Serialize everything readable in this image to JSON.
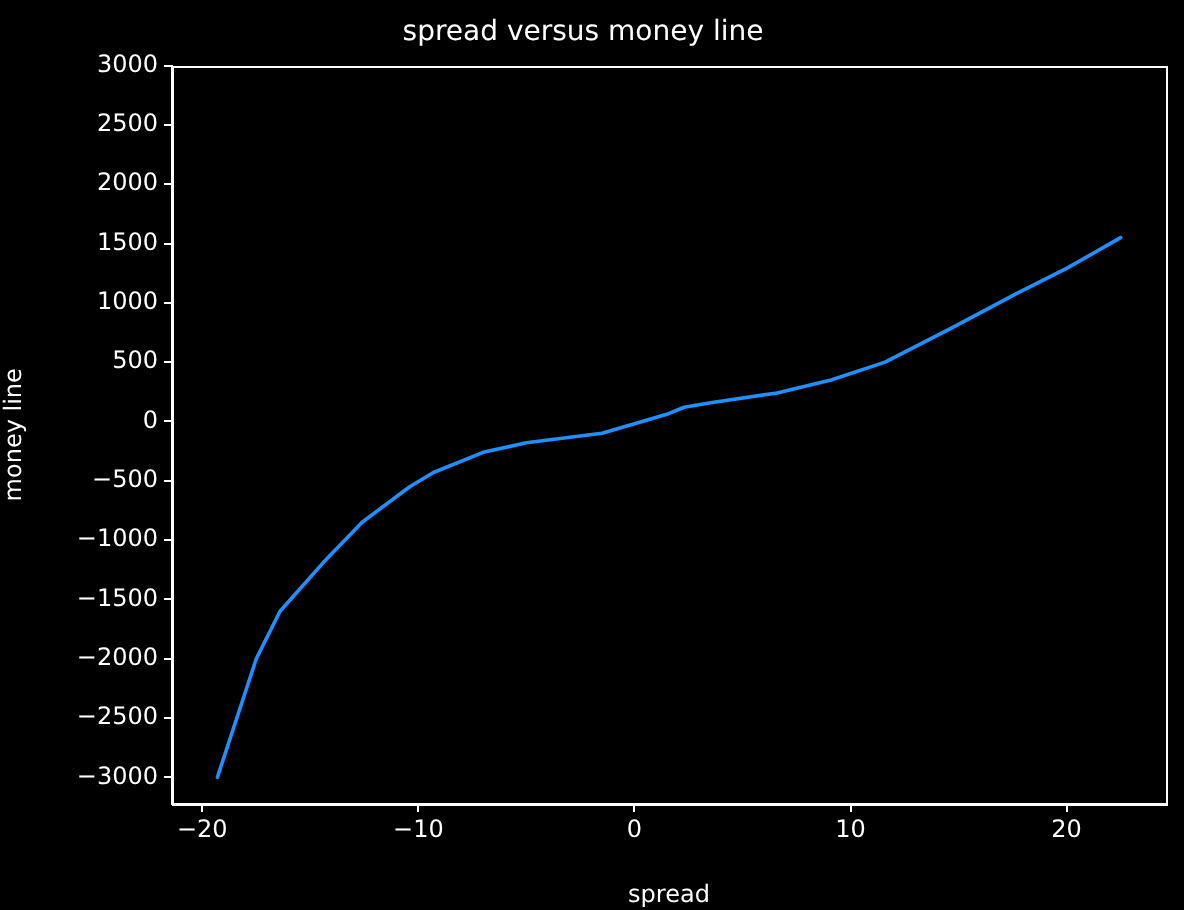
{
  "chart_data": {
    "type": "line",
    "title": "spread versus money line",
    "xlabel": "spread",
    "ylabel": "money line",
    "x": [
      -19.3,
      -17.5,
      -16.4,
      -14.4,
      -12.6,
      -10.4,
      -9.3,
      -7,
      -5,
      -1.5,
      0,
      1.5,
      2.3,
      3.6,
      6.6,
      9.1,
      11.6,
      14.6,
      17.7,
      20,
      22.5
    ],
    "series": [
      {
        "color": "#1e90ff",
        "values": [
          -3000,
          -2000,
          -1600,
          -1190,
          -850,
          -550,
          -430,
          -260,
          -180,
          -100,
          -20,
          60,
          120,
          160,
          240,
          350,
          500,
          780,
          1080,
          1290,
          1550
        ]
      }
    ],
    "xlim": [
      -21.4,
      24.6
    ],
    "xticks": [
      -20,
      -10,
      0,
      10,
      20
    ],
    "ylim": [
      -3225,
      3000
    ],
    "yticks": [
      -3000,
      -2500,
      -2000,
      -1500,
      -1000,
      -500,
      0,
      500,
      1000,
      1500,
      2000,
      2500,
      3000
    ],
    "grid": false,
    "legend": false,
    "marker": "none",
    "line_style": "solid"
  }
}
